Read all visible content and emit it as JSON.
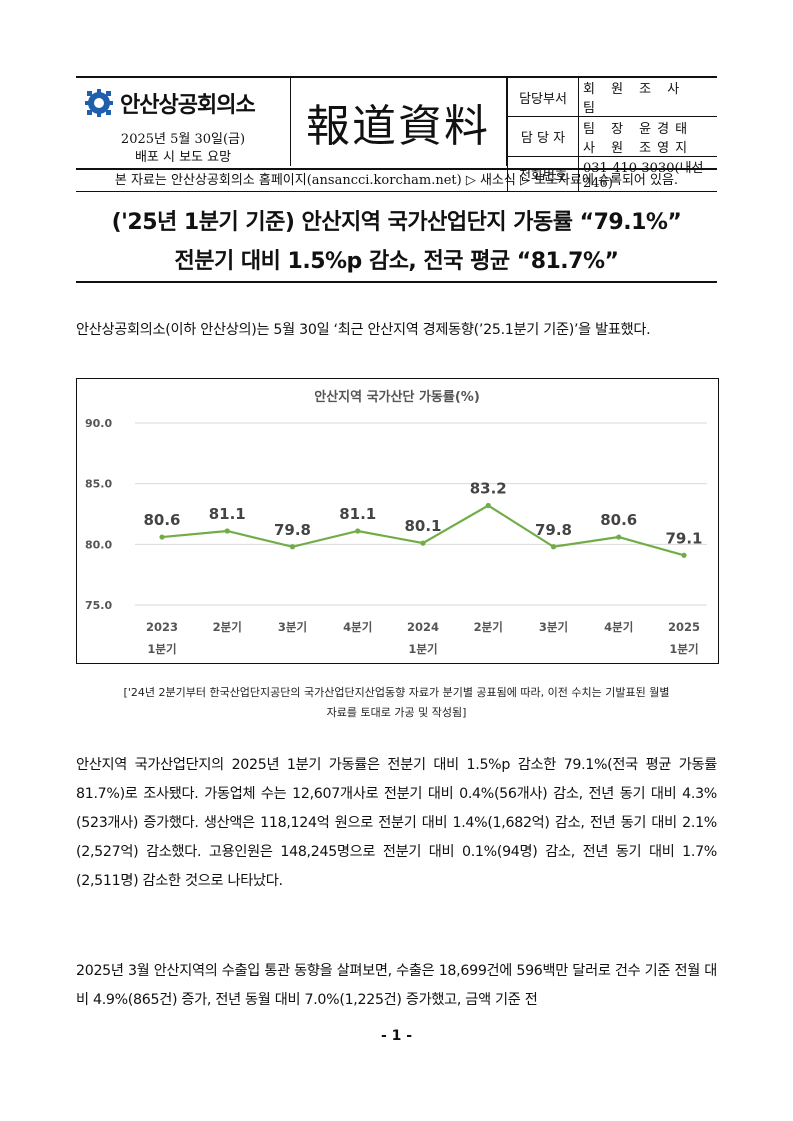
{
  "header": {
    "org_name": "안산상공회의소",
    "date": "2025년 5월 30일(금)",
    "embargo": "배포 시 보도 요망",
    "press_release": "報道資料",
    "dept_label": "담당부서",
    "dept_value": "회 원 조 사 팀",
    "person_label": "담 당 자",
    "person_line1": "팀 장 윤경태",
    "person_line2": "사 원 조영지",
    "phone_label": "전화번호",
    "phone_value": "031-410-3030(내선246)"
  },
  "notice": "본 자료는 안산상공회의소 홈페이지(ansancci.korcham.net) ▷ 새소식 ▷ 보도자료에 수록되어 있음.",
  "title": {
    "line1": "('25년 1분기 기준) 안산지역 국가산업단지 가동률 “79.1%”",
    "line2": "전분기 대비 1.5%p 감소, 전국 평균 “81.7%”"
  },
  "body": {
    "p1": "안산상공회의소(이하 안산상의)는 5월 30일 ‘최근 안산지역 경제동향(’25.1분기 기준)’을 발표했다.",
    "p2": "안산지역 국가산업단지의 2025년 1분기 가동률은 전분기 대비 1.5%p 감소한 79.1%(전국 평균 가동률 81.7%)로 조사됐다. 가동업체 수는 12,607개사로 전분기 대비 0.4%(56개사) 감소, 전년 동기 대비 4.3%(523개사) 증가했다. 생산액은 118,124억 원으로 전분기 대비 1.4%(1,682억) 감소, 전년 동기 대비 2.1%(2,527억) 감소했다. 고용인원은 148,245명으로 전분기 대비 0.1%(94명) 감소, 전년 동기 대비 1.7%(2,511명) 감소한 것으로 나타났다.",
    "p3": "2025년 3월 안산지역의 수출입 통관 동향을 살펴보면, 수출은 18,699건에 596백만 달러로 건수 기준 전월 대비 4.9%(865건) 증가, 전년 동월 대비 7.0%(1,225건) 증가했고, 금액 기준 전"
  },
  "chart_note": {
    "line1": "['24년 2분기부터 한국산업단지공단의 국가산업단지산업동향 자료가 분기별 공표됨에 따라, 이전 수치는 기발표된 월별",
    "line2": "자료를 토대로 가공 및 작성됨]"
  },
  "page_number": "- 1 -",
  "chart_data": {
    "type": "line",
    "title": "안산지역 국가산단 가동률(%)",
    "categories": [
      "2023",
      "2분기",
      "3분기",
      "4분기",
      "2024",
      "2분기",
      "3분기",
      "4분기",
      "2025"
    ],
    "category_sublabels": [
      "1분기",
      "",
      "",
      "",
      "1분기",
      "",
      "",
      "",
      "1분기"
    ],
    "values": [
      80.6,
      81.1,
      79.8,
      81.1,
      80.1,
      83.2,
      79.8,
      80.6,
      79.1
    ],
    "data_labels": [
      "80.6",
      "81.1",
      "79.8",
      "81.1",
      "80.1",
      "83.2",
      "79.8",
      "80.6",
      "79.1"
    ],
    "ylim": [
      75,
      90
    ],
    "yticks": [
      "75.0",
      "80.0",
      "85.0",
      "90.0"
    ],
    "grid": true,
    "line_color": "#70ad47",
    "xlabel": "",
    "ylabel": ""
  }
}
